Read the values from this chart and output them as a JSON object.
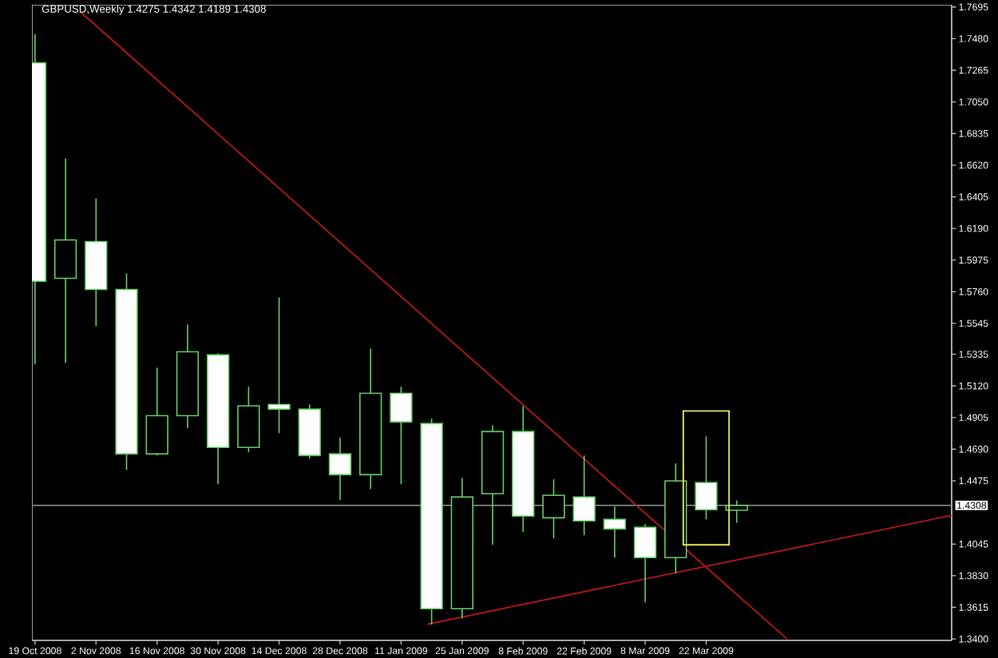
{
  "chart_data": {
    "type": "candlestick",
    "title": "GBPUSD,Weekly  1.4275 1.4342 1.4189 1.4308",
    "color": "#66cc66",
    "x": [
      "2008-10-19",
      "2008-10-26",
      "2008-11-02",
      "2008-11-09",
      "2008-11-16",
      "2008-11-23",
      "2008-11-30",
      "2008-12-07",
      "2008-12-14",
      "2008-12-21",
      "2008-12-28",
      "2009-01-04",
      "2009-01-11",
      "2009-01-18",
      "2009-01-25",
      "2009-02-01",
      "2009-02-08",
      "2009-02-15",
      "2009-02-22",
      "2009-03-01",
      "2009-03-08",
      "2009-03-15",
      "2009-03-22",
      "2009-03-29"
    ],
    "ohlc": [
      [
        1.7315,
        1.7511,
        1.5266,
        1.583
      ],
      [
        1.5851,
        1.6665,
        1.5276,
        1.6112
      ],
      [
        1.6101,
        1.6394,
        1.5526,
        1.5775
      ],
      [
        1.5775,
        1.5884,
        1.455,
        1.4658
      ],
      [
        1.4658,
        1.5244,
        1.4647,
        1.4918
      ],
      [
        1.4918,
        1.5537,
        1.4832,
        1.5352
      ],
      [
        1.5331,
        1.5341,
        1.4452,
        1.4702
      ],
      [
        1.4702,
        1.5114,
        1.4669,
        1.4984
      ],
      [
        1.4994,
        1.5721,
        1.4799,
        1.4962
      ],
      [
        1.4962,
        1.4994,
        1.4626,
        1.4647
      ],
      [
        1.4658,
        1.4767,
        1.4344,
        1.4517
      ],
      [
        1.4517,
        1.5374,
        1.442,
        1.507
      ],
      [
        1.507,
        1.5114,
        1.4452,
        1.4875
      ],
      [
        1.4864,
        1.4897,
        1.3498,
        1.3606
      ],
      [
        1.3606,
        1.4495,
        1.3541,
        1.4365
      ],
      [
        1.4387,
        1.4853,
        1.404,
        1.481
      ],
      [
        1.481,
        1.4984,
        1.4127,
        1.4235
      ],
      [
        1.4224,
        1.4485,
        1.4083,
        1.4376
      ],
      [
        1.4365,
        1.4647,
        1.4105,
        1.4203
      ],
      [
        1.4213,
        1.43,
        1.3953,
        1.4148
      ],
      [
        1.4159,
        1.4181,
        1.3649,
        1.3953
      ],
      [
        1.3953,
        1.4593,
        1.3845,
        1.4474
      ],
      [
        1.4463,
        1.4777,
        1.4213,
        1.4279
      ],
      [
        1.4275,
        1.4342,
        1.4189,
        1.4308
      ]
    ],
    "series": [
      {
        "type": "line",
        "color": "#b01818",
        "x": [
          "2008-10-29T12:00",
          "2009-04-09T13:00"
        ],
        "values": [
          1.766,
          1.34
        ]
      },
      {
        "type": "line",
        "color": "#b01818",
        "x": [
          "2009-01-17",
          "2009-05-17T08:00"
        ],
        "values": [
          1.35,
          1.424
        ]
      }
    ],
    "ref_lines": [
      {
        "axis": "y",
        "value": 1.4308,
        "label": "1.4308",
        "color": "#808080"
      }
    ],
    "xlim": [
      "2008-10-18T07:00",
      "2009-05-17T08:00"
    ],
    "ylim": [
      1.339,
      1.771
    ],
    "xticks": [
      {
        "value": "2008-10-19",
        "label": "19 Oct 2008"
      },
      {
        "value": "2008-11-02",
        "label": "2 Nov 2008"
      },
      {
        "value": "2008-11-16",
        "label": "16 Nov 2008"
      },
      {
        "value": "2008-11-30",
        "label": "30 Nov 2008"
      },
      {
        "value": "2008-12-14",
        "label": "14 Dec 2008"
      },
      {
        "value": "2008-12-28",
        "label": "28 Dec 2008"
      },
      {
        "value": "2009-01-11",
        "label": "11 Jan 2009"
      },
      {
        "value": "2009-01-25",
        "label": "25 Jan 2009"
      },
      {
        "value": "2009-02-08",
        "label": "8 Feb 2009"
      },
      {
        "value": "2009-02-22",
        "label": "22 Feb 2009"
      },
      {
        "value": "2009-03-08",
        "label": "8 Mar 2009"
      },
      {
        "value": "2009-03-22",
        "label": "22 Mar 2009"
      }
    ],
    "yticks": [
      1.7695,
      {
        "value": 1.748,
        "label": "1.7480"
      },
      1.7265,
      {
        "value": 1.705,
        "label": "1.7050"
      },
      1.6835,
      {
        "value": 1.662,
        "label": "1.6620"
      },
      1.6405,
      {
        "value": 1.619,
        "label": "1.6190"
      },
      1.5975,
      {
        "value": 1.576,
        "label": "1.5760"
      },
      1.5545,
      1.5335,
      {
        "value": 1.512,
        "label": "1.5120"
      },
      1.4905,
      {
        "value": 1.469,
        "label": "1.4690"
      },
      1.4475,
      1.4045,
      {
        "value": 1.383,
        "label": "1.3830"
      },
      1.3615,
      {
        "value": 1.34,
        "label": "1.3400"
      }
    ]
  }
}
